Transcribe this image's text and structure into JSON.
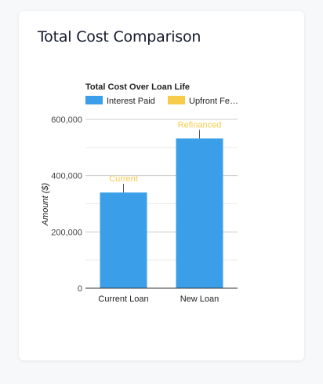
{
  "card": {
    "title": "Total Cost Comparison"
  },
  "chart_data": {
    "type": "bar",
    "title": "Total Cost Over Loan Life",
    "ylabel": "Amount ($)",
    "xlabel": "",
    "categories": [
      "Current Loan",
      "New Loan"
    ],
    "series": [
      {
        "name": "Interest Paid",
        "color": "#3a9fe8",
        "values": [
          340000,
          532000
        ]
      },
      {
        "name": "Upfront Fe…",
        "color": "#f7cc4b",
        "values": [
          0,
          0
        ]
      }
    ],
    "annotations": [
      {
        "category": "Current Loan",
        "text": "Current",
        "color": "#f7cc4b"
      },
      {
        "category": "New Loan",
        "text": "Refinanced",
        "color": "#f7cc4b"
      }
    ],
    "ylim": [
      0,
      600000
    ],
    "yticks": [
      "0",
      "200,000",
      "400,000",
      "600,000"
    ],
    "ytick_values": [
      0,
      200000,
      400000,
      600000
    ],
    "grid": true,
    "legend": "top-left"
  }
}
